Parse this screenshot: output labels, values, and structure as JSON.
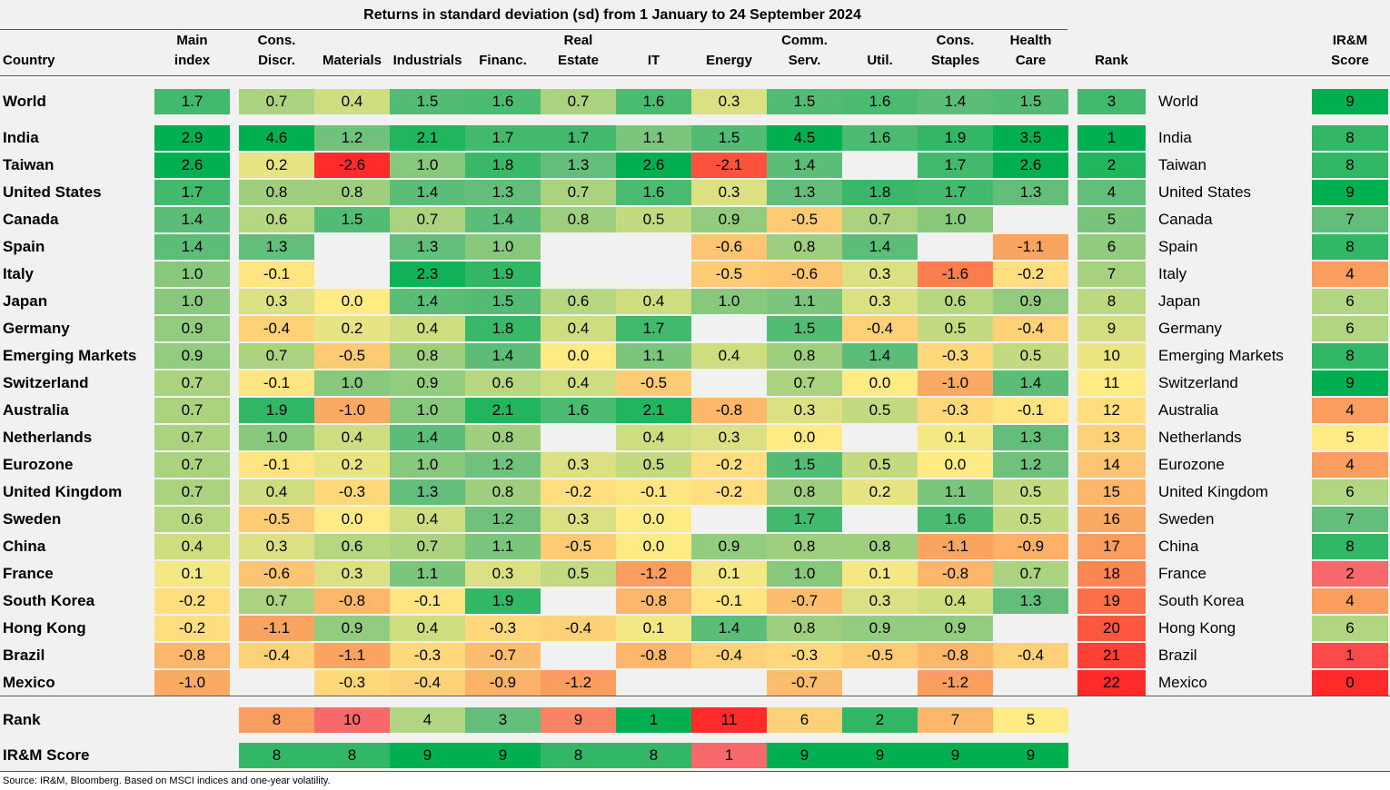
{
  "title": "Returns in standard deviation (sd) from 1 January to 24 September 2024",
  "headers": {
    "country": "Country",
    "columns": [
      "Main\nindex",
      "Cons.\nDiscr.",
      "Materials",
      "Industrials",
      "Financ.",
      "Real\nEstate",
      "IT",
      "Energy",
      "Comm.\nServ.",
      "Util.",
      "Cons.\nStaples",
      "Health\nCare"
    ],
    "rank": "Rank",
    "score": "IR&M\nScore"
  },
  "rows": [
    {
      "country": "World",
      "values": [
        1.7,
        0.7,
        0.4,
        1.5,
        1.6,
        0.7,
        1.6,
        0.3,
        1.5,
        1.6,
        1.4,
        1.5
      ],
      "rank": 3,
      "score": 9
    },
    {
      "country": "India",
      "values": [
        2.9,
        4.6,
        1.2,
        2.1,
        1.7,
        1.7,
        1.1,
        1.5,
        4.5,
        1.6,
        1.9,
        3.5
      ],
      "rank": 1,
      "score": 8
    },
    {
      "country": "Taiwan",
      "values": [
        2.6,
        0.2,
        -2.6,
        1.0,
        1.8,
        1.3,
        2.6,
        -2.1,
        1.4,
        null,
        1.7,
        2.6
      ],
      "rank": 2,
      "score": 8
    },
    {
      "country": "United States",
      "values": [
        1.7,
        0.8,
        0.8,
        1.4,
        1.3,
        0.7,
        1.6,
        0.3,
        1.3,
        1.8,
        1.7,
        1.3
      ],
      "rank": 4,
      "score": 9
    },
    {
      "country": "Canada",
      "values": [
        1.4,
        0.6,
        1.5,
        0.7,
        1.4,
        0.8,
        0.5,
        0.9,
        -0.5,
        0.7,
        1.0,
        null
      ],
      "rank": 5,
      "score": 7
    },
    {
      "country": "Spain",
      "values": [
        1.4,
        1.3,
        null,
        1.3,
        1.0,
        null,
        null,
        -0.6,
        0.8,
        1.4,
        null,
        -1.1
      ],
      "rank": 6,
      "score": 8
    },
    {
      "country": "Italy",
      "values": [
        1.0,
        -0.1,
        null,
        2.3,
        1.9,
        null,
        null,
        -0.5,
        -0.6,
        0.3,
        -1.6,
        -0.2
      ],
      "rank": 7,
      "score": 4
    },
    {
      "country": "Japan",
      "values": [
        1.0,
        0.3,
        0.0,
        1.4,
        1.5,
        0.6,
        0.4,
        1.0,
        1.1,
        0.3,
        0.6,
        0.9
      ],
      "rank": 8,
      "score": 6
    },
    {
      "country": "Germany",
      "values": [
        0.9,
        -0.4,
        0.2,
        0.4,
        1.8,
        0.4,
        1.7,
        null,
        1.5,
        -0.4,
        0.5,
        -0.4
      ],
      "rank": 9,
      "score": 6
    },
    {
      "country": "Emerging Markets",
      "values": [
        0.9,
        0.7,
        -0.5,
        0.8,
        1.4,
        0.0,
        1.1,
        0.4,
        0.8,
        1.4,
        -0.3,
        0.5
      ],
      "rank": 10,
      "score": 8
    },
    {
      "country": "Switzerland",
      "values": [
        0.7,
        -0.1,
        1.0,
        0.9,
        0.6,
        0.4,
        -0.5,
        null,
        0.7,
        0.0,
        -1.0,
        1.4
      ],
      "rank": 11,
      "score": 9
    },
    {
      "country": "Australia",
      "values": [
        0.7,
        1.9,
        -1.0,
        1.0,
        2.1,
        1.6,
        2.1,
        -0.8,
        0.3,
        0.5,
        -0.3,
        -0.1
      ],
      "rank": 12,
      "score": 4
    },
    {
      "country": "Netherlands",
      "values": [
        0.7,
        1.0,
        0.4,
        1.4,
        0.8,
        null,
        0.4,
        0.3,
        0.0,
        null,
        0.1,
        1.3
      ],
      "rank": 13,
      "score": 5
    },
    {
      "country": "Eurozone",
      "values": [
        0.7,
        -0.1,
        0.2,
        1.0,
        1.2,
        0.3,
        0.5,
        -0.2,
        1.5,
        0.5,
        0.0,
        1.2
      ],
      "rank": 14,
      "score": 4
    },
    {
      "country": "United Kingdom",
      "values": [
        0.7,
        0.4,
        -0.3,
        1.3,
        0.8,
        -0.2,
        -0.1,
        -0.2,
        0.8,
        0.2,
        1.1,
        0.5
      ],
      "rank": 15,
      "score": 6
    },
    {
      "country": "Sweden",
      "values": [
        0.6,
        -0.5,
        0.0,
        0.4,
        1.2,
        0.3,
        0.0,
        null,
        1.7,
        null,
        1.6,
        0.5
      ],
      "rank": 16,
      "score": 7
    },
    {
      "country": "China",
      "values": [
        0.4,
        0.3,
        0.6,
        0.7,
        1.1,
        -0.5,
        0.0,
        0.9,
        0.8,
        0.8,
        -1.1,
        -0.9
      ],
      "rank": 17,
      "score": 8
    },
    {
      "country": "France",
      "values": [
        0.1,
        -0.6,
        0.3,
        1.1,
        0.3,
        0.5,
        -1.2,
        0.1,
        1.0,
        0.1,
        -0.8,
        0.7
      ],
      "rank": 18,
      "score": 2
    },
    {
      "country": "South Korea",
      "values": [
        -0.2,
        0.7,
        -0.8,
        -0.1,
        1.9,
        null,
        -0.8,
        -0.1,
        -0.7,
        0.3,
        0.4,
        1.3
      ],
      "rank": 19,
      "score": 4
    },
    {
      "country": "Hong Kong",
      "values": [
        -0.2,
        -1.1,
        0.9,
        0.4,
        -0.3,
        -0.4,
        0.1,
        1.4,
        0.8,
        0.9,
        0.9,
        null
      ],
      "rank": 20,
      "score": 6
    },
    {
      "country": "Brazil",
      "values": [
        -0.8,
        -0.4,
        -1.1,
        -0.3,
        -0.7,
        null,
        -0.8,
        -0.4,
        -0.3,
        -0.5,
        -0.8,
        -0.4
      ],
      "rank": 21,
      "score": 1
    },
    {
      "country": "Mexico",
      "values": [
        -1.0,
        null,
        -0.3,
        -0.4,
        -0.9,
        -1.2,
        null,
        null,
        -0.7,
        null,
        -1.2,
        null
      ],
      "rank": 22,
      "score": 0
    }
  ],
  "sector_rank": {
    "label": "Rank",
    "values": [
      8,
      10,
      4,
      3,
      9,
      1,
      11,
      6,
      2,
      7,
      5
    ]
  },
  "sector_score": {
    "label": "IR&M Score",
    "values": [
      8,
      8,
      9,
      9,
      8,
      8,
      1,
      9,
      9,
      9,
      9
    ]
  },
  "source": "Source: IR&M, Bloomberg. Based on MSCI indices and one-year volatility.",
  "colors": {
    "band_gray": "#f1f1f1",
    "dark_green": "#00b050",
    "green": "#63be7b",
    "yellow": "#ffeb84",
    "orange": "#fa9d5e",
    "red": "#f8696b",
    "bright_red": "#ff2a2a"
  }
}
